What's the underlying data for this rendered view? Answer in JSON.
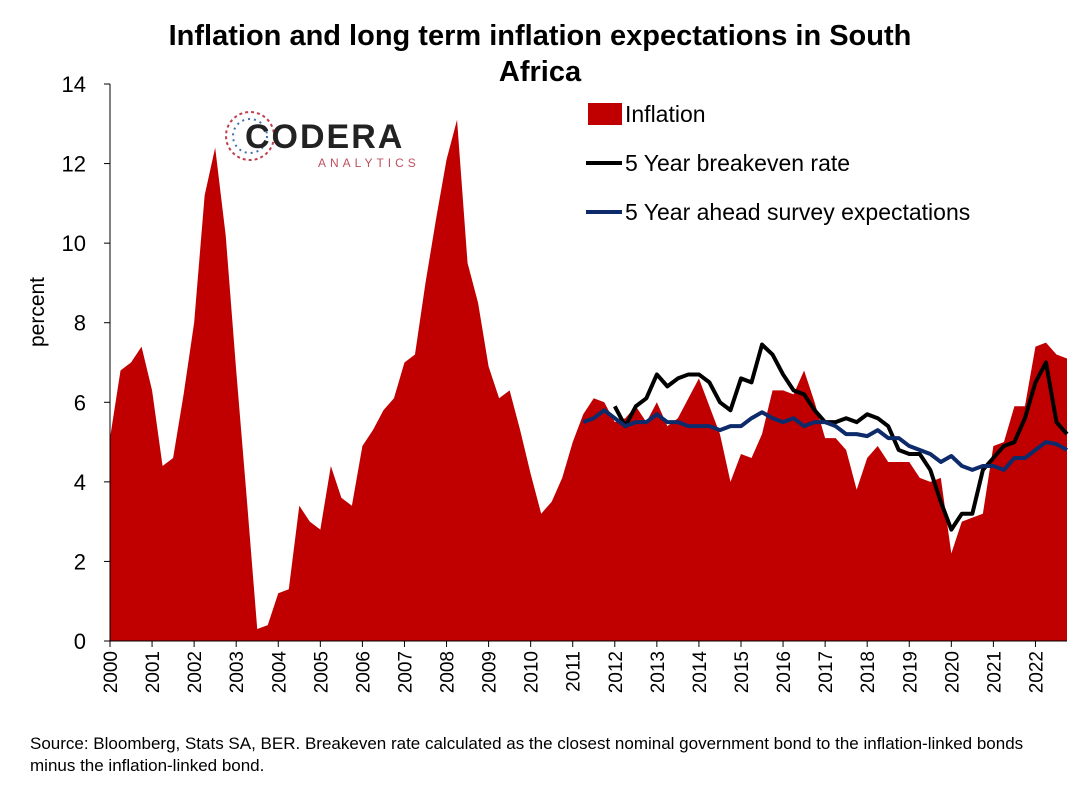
{
  "logo": {
    "name": "CODERA",
    "tagline": "ANALYTICS"
  },
  "chart_data": {
    "type": "line",
    "title": "Inflation and long term inflation expectations in South Africa",
    "y_label": "percent",
    "source": "Source: Bloomberg, Stats SA, BER. Breakeven rate calculated as the closest nominal government bond to the inflation-linked bonds minus the inflation-linked bond.",
    "x": [
      2000,
      2000.25,
      2000.5,
      2000.75,
      2001,
      2001.25,
      2001.5,
      2001.75,
      2002,
      2002.25,
      2002.5,
      2002.75,
      2003,
      2003.25,
      2003.5,
      2003.75,
      2004,
      2004.25,
      2004.5,
      2004.75,
      2005,
      2005.25,
      2005.5,
      2005.75,
      2006,
      2006.25,
      2006.5,
      2006.75,
      2007,
      2007.25,
      2007.5,
      2007.75,
      2008,
      2008.25,
      2008.5,
      2008.75,
      2009,
      2009.25,
      2009.5,
      2009.75,
      2010,
      2010.25,
      2010.5,
      2010.75,
      2011,
      2011.25,
      2011.5,
      2011.75,
      2012,
      2012.25,
      2012.5,
      2012.75,
      2013,
      2013.25,
      2013.5,
      2013.75,
      2014,
      2014.25,
      2014.5,
      2014.75,
      2015,
      2015.25,
      2015.5,
      2015.75,
      2016,
      2016.25,
      2016.5,
      2016.75,
      2017,
      2017.25,
      2017.5,
      2017.75,
      2018,
      2018.25,
      2018.5,
      2018.75,
      2019,
      2019.25,
      2019.5,
      2019.75,
      2020,
      2020.25,
      2020.5,
      2020.75,
      2021,
      2021.25,
      2021.5,
      2021.75,
      2022,
      2022.25,
      2022.5,
      2022.75
    ],
    "xlim": [
      2000,
      2022.75
    ],
    "xticks": [
      2000,
      2001,
      2002,
      2003,
      2004,
      2005,
      2006,
      2007,
      2008,
      2009,
      2010,
      2011,
      2012,
      2013,
      2014,
      2015,
      2016,
      2017,
      2018,
      2019,
      2020,
      2021,
      2022
    ],
    "ylim": [
      0,
      14
    ],
    "yticks": [
      0,
      2,
      4,
      6,
      8,
      10,
      12,
      14
    ],
    "legend": "top-right",
    "series": [
      {
        "name": "Inflation",
        "color": "#c00000",
        "fill": true,
        "values": [
          5.1,
          6.8,
          7.0,
          7.4,
          6.3,
          4.4,
          4.6,
          6.2,
          8.0,
          11.2,
          12.4,
          10.2,
          6.8,
          3.6,
          0.3,
          0.4,
          1.2,
          1.3,
          3.4,
          3.0,
          2.8,
          4.4,
          3.6,
          3.4,
          4.9,
          5.3,
          5.8,
          6.1,
          7.0,
          7.2,
          9.0,
          10.6,
          12.1,
          13.1,
          9.5,
          8.5,
          6.9,
          6.1,
          6.3,
          5.3,
          4.2,
          3.2,
          3.5,
          4.1,
          5.0,
          5.7,
          6.1,
          6.0,
          5.5,
          5.6,
          5.9,
          5.5,
          6.0,
          5.4,
          5.6,
          6.1,
          6.6,
          5.9,
          5.2,
          4.0,
          4.7,
          4.6,
          5.2,
          6.3,
          6.3,
          6.2,
          6.8,
          6.0,
          5.1,
          5.1,
          4.8,
          3.8,
          4.6,
          4.9,
          4.5,
          4.5,
          4.5,
          4.1,
          4.0,
          4.1,
          2.2,
          3.0,
          3.1,
          3.2,
          4.9,
          5.0,
          5.9,
          5.9,
          7.4,
          7.5,
          7.2,
          7.1
        ]
      },
      {
        "name": "5 Year breakeven rate",
        "color": "#000000",
        "fill": false,
        "values": [
          null,
          null,
          null,
          null,
          null,
          null,
          null,
          null,
          null,
          null,
          null,
          null,
          null,
          null,
          null,
          null,
          null,
          null,
          null,
          null,
          null,
          null,
          null,
          null,
          null,
          null,
          null,
          null,
          null,
          null,
          null,
          null,
          null,
          null,
          null,
          null,
          null,
          null,
          null,
          null,
          null,
          null,
          null,
          null,
          null,
          null,
          null,
          null,
          5.9,
          5.4,
          5.9,
          6.1,
          6.7,
          6.4,
          6.6,
          6.7,
          6.7,
          6.5,
          6.0,
          5.8,
          6.6,
          6.5,
          7.45,
          7.2,
          6.7,
          6.3,
          6.2,
          5.8,
          5.5,
          5.5,
          5.6,
          5.5,
          5.7,
          5.6,
          5.4,
          4.8,
          4.7,
          4.7,
          4.3,
          3.5,
          2.8,
          3.2,
          3.2,
          4.3,
          4.6,
          4.9,
          5.0,
          5.6,
          6.5,
          7.0,
          5.5,
          5.2
        ]
      },
      {
        "name": "5 Year ahead survey expectations",
        "color": "#0d2a6b",
        "fill": false,
        "values": [
          null,
          null,
          null,
          null,
          null,
          null,
          null,
          null,
          null,
          null,
          null,
          null,
          null,
          null,
          null,
          null,
          null,
          null,
          null,
          null,
          null,
          null,
          null,
          null,
          null,
          null,
          null,
          null,
          null,
          null,
          null,
          null,
          null,
          null,
          null,
          null,
          null,
          null,
          null,
          null,
          null,
          null,
          null,
          null,
          null,
          5.5,
          5.6,
          5.8,
          5.6,
          5.4,
          5.5,
          5.5,
          5.7,
          5.5,
          5.5,
          5.4,
          5.4,
          5.4,
          5.3,
          5.4,
          5.4,
          5.6,
          5.75,
          5.6,
          5.5,
          5.6,
          5.4,
          5.5,
          5.5,
          5.4,
          5.2,
          5.2,
          5.15,
          5.3,
          5.1,
          5.1,
          4.9,
          4.8,
          4.7,
          4.5,
          4.65,
          4.4,
          4.3,
          4.4,
          4.4,
          4.3,
          4.6,
          4.6,
          4.8,
          5.0,
          4.95,
          4.8
        ]
      }
    ]
  }
}
